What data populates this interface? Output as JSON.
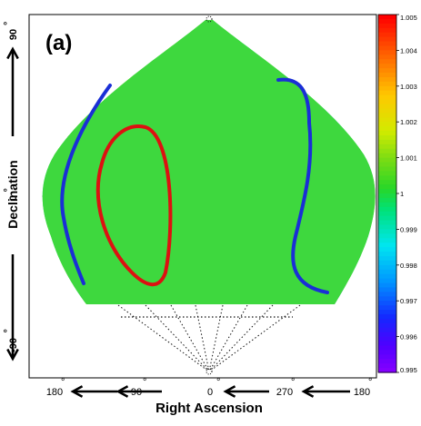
{
  "chart_data": {
    "type": "heatmap",
    "panel_label": "(a)",
    "xlabel": "Right Ascension",
    "ylabel": "Declination",
    "x_tick_labels": [
      "180",
      "90",
      "0",
      "270",
      "180"
    ],
    "y_tick_labels": [
      "90",
      "0",
      "-90"
    ],
    "projection": "sky map (right ascension vs declination)",
    "grid": true,
    "colorbar": {
      "placement": "right",
      "range": [
        0.995,
        1.005
      ],
      "ticks": [
        "1.005",
        "1.004",
        "1.003",
        "1.002",
        "1.001",
        "1",
        "0.999",
        "0.998",
        "0.997",
        "0.996",
        "0.995"
      ]
    },
    "contours": [
      {
        "color": "#dd1111",
        "region": "left-center, roughly RA 90 to 45, Dec +30 to -40"
      },
      {
        "color": "#1a2fd6",
        "region": "left edge, near RA 180 to 135"
      },
      {
        "color": "#1a2fd6",
        "region": "right edge, near RA 270 to 225"
      }
    ],
    "colors": {
      "high": "#ff0000",
      "mid": "#22dd22",
      "low": "#6a00ff"
    }
  }
}
